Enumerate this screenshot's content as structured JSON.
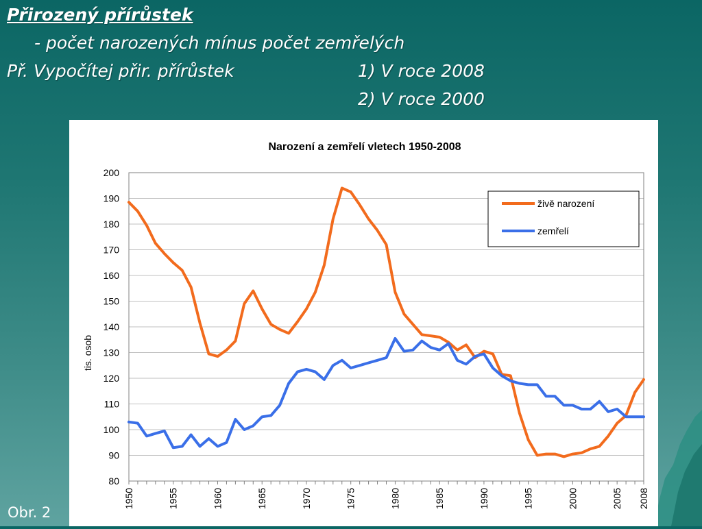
{
  "slide": {
    "heading": "Přirozený přírůstek",
    "definition": "- počet narozených mínus počet zemřelých",
    "task": "Př. Vypočítej přir. přírůstek",
    "task_item_1": "1) V roce 2008",
    "task_item_2": "2) V roce 2000",
    "figure_label": "Obr. 2"
  },
  "colors": {
    "born": "#f26b1d",
    "died": "#3a6fe8",
    "background_top": "#0b6664",
    "background_bottom": "#5fa3a0"
  },
  "chart_data": {
    "type": "line",
    "title": "Narození a zemřelí vletech 1950-2008",
    "xlabel": "",
    "ylabel": "tis. osob",
    "ylim": [
      80,
      200
    ],
    "yticks": [
      "80",
      "90",
      "100",
      "110",
      "120",
      "130",
      "140",
      "150",
      "160",
      "170",
      "180",
      "190",
      "200"
    ],
    "xticks": [
      "1950",
      "1955",
      "1960",
      "1965",
      "1970",
      "1975",
      "1980",
      "1985",
      "1990",
      "1995",
      "2000",
      "2005",
      "2008"
    ],
    "grid": true,
    "legend": "top-right",
    "x": [
      1950,
      1951,
      1952,
      1953,
      1954,
      1955,
      1956,
      1957,
      1958,
      1959,
      1960,
      1961,
      1962,
      1963,
      1964,
      1965,
      1966,
      1967,
      1968,
      1969,
      1970,
      1971,
      1972,
      1973,
      1974,
      1975,
      1976,
      1977,
      1978,
      1979,
      1980,
      1981,
      1982,
      1983,
      1984,
      1985,
      1986,
      1987,
      1988,
      1989,
      1990,
      1991,
      1992,
      1993,
      1994,
      1995,
      1996,
      1997,
      1998,
      1999,
      2000,
      2001,
      2002,
      2003,
      2004,
      2005,
      2006,
      2007,
      2008
    ],
    "series": [
      {
        "name": "živě narození",
        "values": [
          188.5,
          185,
          179.5,
          172.5,
          168.5,
          165,
          162,
          155.5,
          141.5,
          129.5,
          128.5,
          131,
          134.5,
          149,
          154,
          147,
          141,
          139,
          137.5,
          142,
          147,
          153.5,
          164,
          182,
          194,
          192.5,
          187.5,
          182,
          177.5,
          172,
          153.5,
          145,
          141,
          137,
          136.5,
          136,
          134,
          131,
          133,
          128,
          130.5,
          129.5,
          121.5,
          121,
          106.5,
          96,
          90,
          90.5,
          90.5,
          89.5,
          90.5,
          91,
          92.5,
          93.5,
          97.5,
          102.5,
          105.5,
          114.5,
          119.5
        ]
      },
      {
        "name": "zemřelí",
        "values": [
          103,
          102.5,
          97.5,
          98.5,
          99.5,
          93,
          93.5,
          98,
          93.5,
          96.5,
          93.5,
          95,
          104,
          100,
          101.5,
          105,
          105.5,
          109.5,
          118,
          122.5,
          123.5,
          122.5,
          119.5,
          125,
          127,
          124,
          125,
          126,
          127,
          128,
          135.5,
          130.5,
          131,
          134.5,
          132,
          131,
          133.5,
          127,
          125.5,
          128.5,
          129.5,
          124,
          121,
          119,
          118,
          117.5,
          117.5,
          113,
          113,
          109.5,
          109.5,
          108,
          108,
          111,
          107,
          108,
          105,
          105,
          105
        ]
      }
    ]
  }
}
